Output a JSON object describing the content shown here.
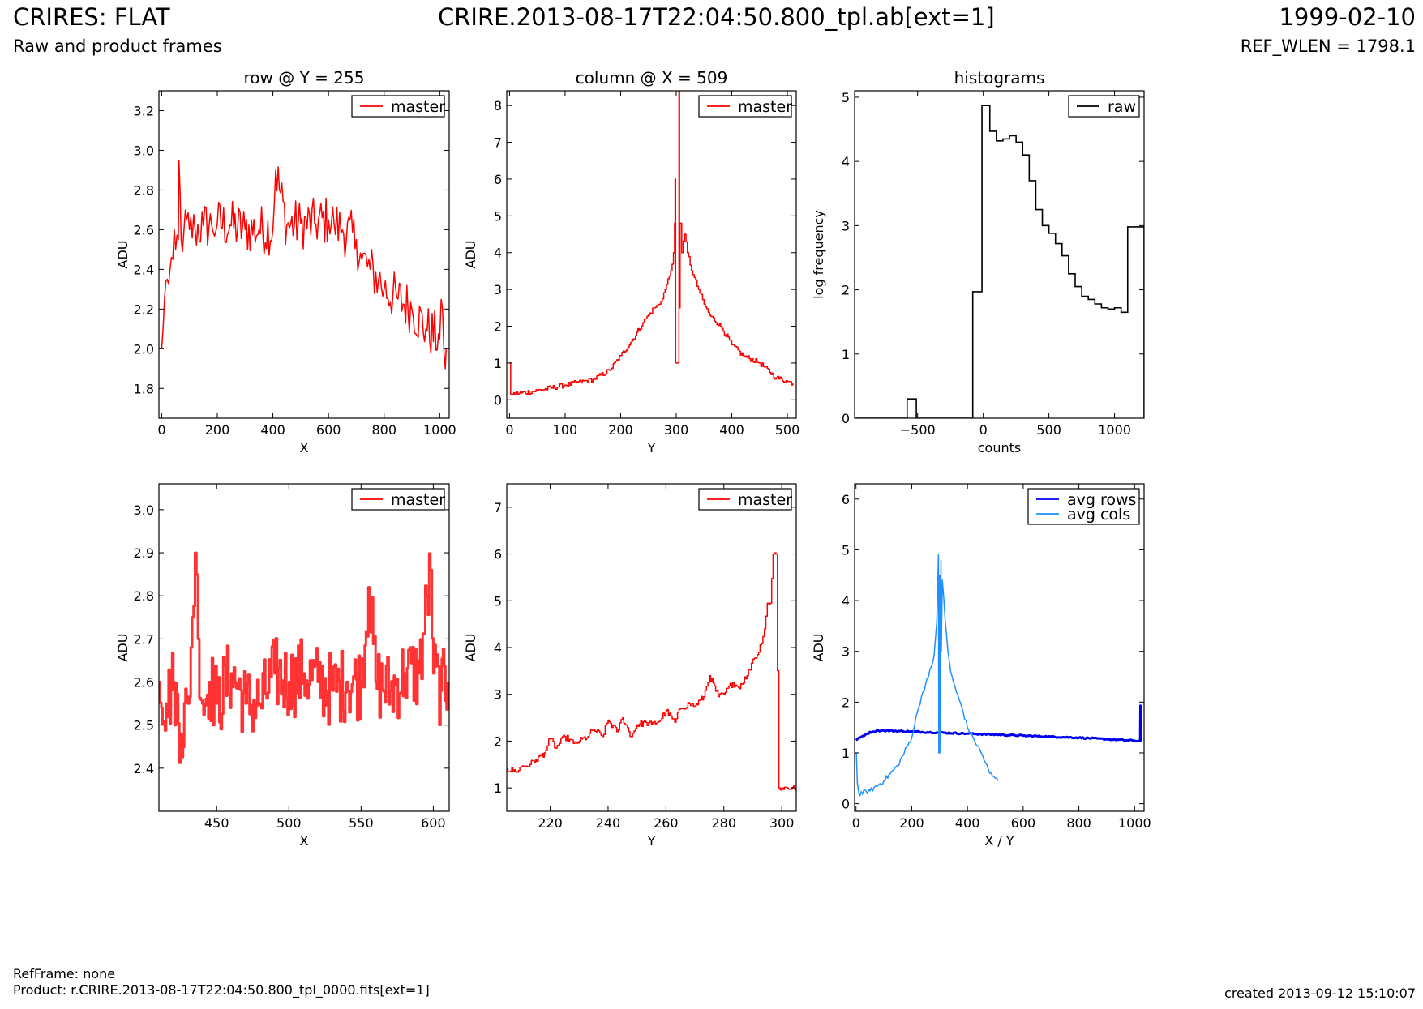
{
  "header": {
    "title": "CRIRES: FLAT",
    "subtitle": "Raw and product frames",
    "filename": "CRIRE.2013-08-17T22:04:50.800_tpl.ab[ext=1]",
    "date": "1999-02-10",
    "ref_wlen": "REF_WLEN = 1798.1"
  },
  "footer": {
    "ref_frame": "RefFrame: none",
    "product": "Product: r.CRIRE.2013-08-17T22:04:50.800_tpl_0000.fits[ext=1]",
    "created": "created 2013-09-12 15:10:07"
  },
  "colors": {
    "master": "#ff0000",
    "master_zoom": "#ff3333",
    "raw": "#000000",
    "avg_rows": "#0000ee",
    "avg_cols": "#1e90ff"
  },
  "chart_data": [
    {
      "id": "row-full",
      "type": "line",
      "title": "row @ Y = 255",
      "xlabel": "X",
      "ylabel": "ADU",
      "xlim": [
        -10,
        1034
      ],
      "ylim": [
        1.65,
        3.3
      ],
      "xticks": [
        0,
        200,
        400,
        600,
        800,
        1000
      ],
      "yticks": [
        1.8,
        2.0,
        2.2,
        2.4,
        2.6,
        2.8,
        3.0,
        3.2
      ],
      "ytick_labels": [
        "1.8",
        "2.0",
        "2.2",
        "2.4",
        "2.6",
        "2.8",
        "3.0",
        "3.2"
      ],
      "legend": {
        "position": "top-right",
        "entries": [
          {
            "name": "master",
            "color": "#ff0000"
          }
        ]
      },
      "series": [
        {
          "name": "master",
          "color": "#ff0000",
          "step": false,
          "x": [
            0,
            5,
            10,
            20,
            30,
            40,
            50,
            60,
            62,
            70,
            80,
            100,
            120,
            150,
            180,
            200,
            250,
            300,
            350,
            400,
            410,
            450,
            500,
            550,
            600,
            620,
            650,
            700,
            720,
            750,
            780,
            800,
            850,
            900,
            950,
            1000,
            1010,
            1020,
            1023
          ],
          "y": [
            2.0,
            2.1,
            2.25,
            2.35,
            2.4,
            2.45,
            2.5,
            2.55,
            2.95,
            2.55,
            2.6,
            2.6,
            2.6,
            2.62,
            2.62,
            2.63,
            2.62,
            2.6,
            2.6,
            2.6,
            2.9,
            2.62,
            2.63,
            2.63,
            2.65,
            2.63,
            2.6,
            2.55,
            2.45,
            2.4,
            2.35,
            2.3,
            2.25,
            2.2,
            2.1,
            2.05,
            2.2,
            1.9,
            2.0
          ],
          "noise": 0.13
        }
      ]
    },
    {
      "id": "col-full",
      "type": "line",
      "title": "column @ X = 509",
      "xlabel": "Y",
      "ylabel": "ADU",
      "xlim": [
        -5,
        516
      ],
      "ylim": [
        -0.5,
        8.4
      ],
      "xticks": [
        0,
        100,
        200,
        300,
        400,
        500
      ],
      "yticks": [
        0,
        1,
        2,
        3,
        4,
        5,
        6,
        7,
        8
      ],
      "legend": {
        "position": "top-right",
        "entries": [
          {
            "name": "master",
            "color": "#ff0000"
          }
        ]
      },
      "series": [
        {
          "name": "master",
          "color": "#ff0000",
          "step": true,
          "x": [
            0,
            1,
            2,
            5,
            50,
            100,
            150,
            180,
            200,
            220,
            240,
            250,
            260,
            270,
            280,
            290,
            295,
            297,
            298,
            299,
            300,
            301,
            304,
            305,
            306,
            307,
            310,
            315,
            320,
            330,
            340,
            350,
            360,
            380,
            400,
            420,
            450,
            480,
            500,
            510
          ],
          "y": [
            1,
            1,
            0.15,
            0.15,
            0.25,
            0.4,
            0.55,
            0.8,
            1.2,
            1.6,
            2.1,
            2.3,
            2.5,
            2.6,
            3.0,
            3.5,
            4.0,
            4.8,
            6.0,
            1.0,
            1.0,
            1.0,
            1.0,
            8.4,
            2.5,
            4.8,
            4.0,
            4.5,
            4.0,
            3.4,
            3.0,
            2.6,
            2.3,
            2.0,
            1.5,
            1.2,
            1.0,
            0.6,
            0.5,
            0.45
          ],
          "noise": 0.07
        }
      ]
    },
    {
      "id": "hist",
      "type": "bar",
      "title": "histograms",
      "xlabel": "counts",
      "ylabel": "log frequency",
      "xlim": [
        -980,
        1225
      ],
      "ylim": [
        0,
        5.1
      ],
      "xticks": [
        -500,
        0,
        500,
        1000
      ],
      "xtick_labels": [
        "−500",
        "0",
        "500",
        "1000"
      ],
      "yticks": [
        0,
        1,
        2,
        3,
        4,
        5
      ],
      "legend": {
        "position": "top-right",
        "entries": [
          {
            "name": "raw",
            "color": "#000000"
          }
        ]
      },
      "series": [
        {
          "name": "raw",
          "color": "#000000",
          "bin_edges": [
            -980,
            -580,
            -510,
            -80,
            -10,
            0,
            50,
            100,
            150,
            200,
            250,
            300,
            350,
            400,
            450,
            500,
            550,
            600,
            650,
            700,
            750,
            800,
            850,
            900,
            950,
            1000,
            1050,
            1100,
            1160,
            1225
          ],
          "values": [
            0,
            0.3,
            0,
            1.97,
            4.87,
            4.87,
            4.47,
            4.32,
            4.35,
            4.4,
            4.3,
            4.1,
            3.7,
            3.25,
            3.0,
            2.88,
            2.72,
            2.53,
            2.25,
            2.05,
            1.9,
            1.85,
            1.78,
            1.72,
            1.7,
            1.72,
            1.65,
            2.98,
            2.98
          ]
        }
      ]
    },
    {
      "id": "row-zoom",
      "type": "line",
      "title": "",
      "xlabel": "X",
      "ylabel": "ADU",
      "xlim": [
        410,
        611
      ],
      "ylim": [
        2.3,
        3.06
      ],
      "xticks": [
        450,
        500,
        550,
        600
      ],
      "yticks": [
        2.4,
        2.5,
        2.6,
        2.7,
        2.8,
        2.9,
        3.0
      ],
      "ytick_labels": [
        "2.4",
        "2.5",
        "2.6",
        "2.7",
        "2.8",
        "2.9",
        "3.0"
      ],
      "legend": {
        "position": "top-right",
        "entries": [
          {
            "name": "master",
            "color": "#ff0000"
          }
        ]
      },
      "series": [
        {
          "name": "master",
          "color": "#ff3333",
          "step": true,
          "linewidth": 3,
          "x": [
            410,
            415,
            420,
            425,
            430,
            433,
            435,
            437,
            440,
            445,
            450,
            460,
            470,
            480,
            490,
            500,
            510,
            520,
            530,
            540,
            550,
            555,
            560,
            570,
            580,
            590,
            598,
            600,
            605,
            610
          ],
          "y": [
            2.6,
            2.55,
            2.6,
            2.48,
            2.55,
            2.75,
            2.9,
            2.7,
            2.55,
            2.6,
            2.55,
            2.62,
            2.55,
            2.55,
            2.62,
            2.6,
            2.62,
            2.6,
            2.58,
            2.6,
            2.6,
            2.82,
            2.6,
            2.58,
            2.62,
            2.62,
            2.86,
            2.62,
            2.58,
            2.6
          ],
          "noise": 0.09
        }
      ]
    },
    {
      "id": "col-zoom",
      "type": "line",
      "title": "",
      "xlabel": "Y",
      "ylabel": "ADU",
      "xlim": [
        205,
        305
      ],
      "ylim": [
        0.5,
        7.5
      ],
      "xticks": [
        220,
        240,
        260,
        280,
        300
      ],
      "yticks": [
        1,
        2,
        3,
        4,
        5,
        6,
        7
      ],
      "legend": {
        "position": "top-right",
        "entries": [
          {
            "name": "master",
            "color": "#ff0000"
          }
        ]
      },
      "series": [
        {
          "name": "master",
          "color": "#ff0000",
          "step": true,
          "x": [
            205,
            208,
            210,
            213,
            215,
            218,
            220,
            222,
            225,
            228,
            230,
            233,
            235,
            238,
            240,
            243,
            245,
            248,
            250,
            253,
            255,
            258,
            260,
            263,
            265,
            268,
            270,
            273,
            275,
            278,
            280,
            283,
            285,
            288,
            290,
            292,
            294,
            295,
            296,
            297,
            298,
            299,
            300,
            305
          ],
          "y": [
            1.4,
            1.35,
            1.45,
            1.5,
            1.6,
            1.75,
            2.05,
            1.85,
            2.1,
            1.95,
            2.0,
            2.1,
            2.25,
            2.1,
            2.45,
            2.2,
            2.5,
            2.1,
            2.35,
            2.4,
            2.35,
            2.45,
            2.65,
            2.4,
            2.7,
            2.8,
            2.75,
            2.95,
            3.4,
            2.95,
            3.0,
            3.25,
            3.15,
            3.4,
            3.75,
            3.9,
            4.4,
            4.95,
            4.95,
            6.0,
            6.0,
            1.0,
            1.0,
            1.0
          ],
          "noise": 0.07
        }
      ]
    },
    {
      "id": "avg",
      "type": "line",
      "title": "",
      "xlabel": "X / Y",
      "ylabel": "ADU",
      "xlim": [
        -5,
        1034
      ],
      "ylim": [
        -0.15,
        6.3
      ],
      "xticks": [
        0,
        200,
        400,
        600,
        800,
        1000
      ],
      "yticks": [
        0,
        1,
        2,
        3,
        4,
        5,
        6
      ],
      "legend": {
        "position": "top-right",
        "entries": [
          {
            "name": "avg rows",
            "color": "#0000ee"
          },
          {
            "name": "avg cols",
            "color": "#1e90ff"
          }
        ]
      },
      "series": [
        {
          "name": "avg rows",
          "color": "#0000ee",
          "step": false,
          "linewidth": 3,
          "x": [
            0,
            20,
            40,
            60,
            80,
            100,
            200,
            300,
            400,
            500,
            600,
            700,
            800,
            900,
            1000,
            1020,
            1021,
            1022
          ],
          "y": [
            1.25,
            1.32,
            1.38,
            1.42,
            1.44,
            1.44,
            1.42,
            1.4,
            1.38,
            1.36,
            1.34,
            1.32,
            1.3,
            1.27,
            1.24,
            1.23,
            1.93,
            1.23
          ],
          "noise": 0.015
        },
        {
          "name": "avg cols",
          "color": "#1e90ff",
          "step": false,
          "x": [
            0,
            1,
            5,
            10,
            50,
            100,
            150,
            200,
            220,
            240,
            260,
            280,
            290,
            296,
            297,
            298,
            299,
            300,
            301,
            305,
            306,
            310,
            320,
            330,
            340,
            360,
            380,
            400,
            420,
            450,
            480,
            500,
            510
          ],
          "y": [
            1.0,
            1.0,
            0.4,
            0.2,
            0.25,
            0.45,
            0.75,
            1.3,
            1.8,
            2.2,
            2.5,
            2.9,
            3.6,
            4.9,
            1.0,
            4.0,
            1.0,
            4.5,
            1.0,
            4.8,
            3.0,
            4.4,
            3.6,
            3.0,
            2.6,
            2.2,
            1.9,
            1.5,
            1.3,
            1.0,
            0.6,
            0.5,
            0.45
          ],
          "noise": 0.05
        }
      ]
    }
  ]
}
